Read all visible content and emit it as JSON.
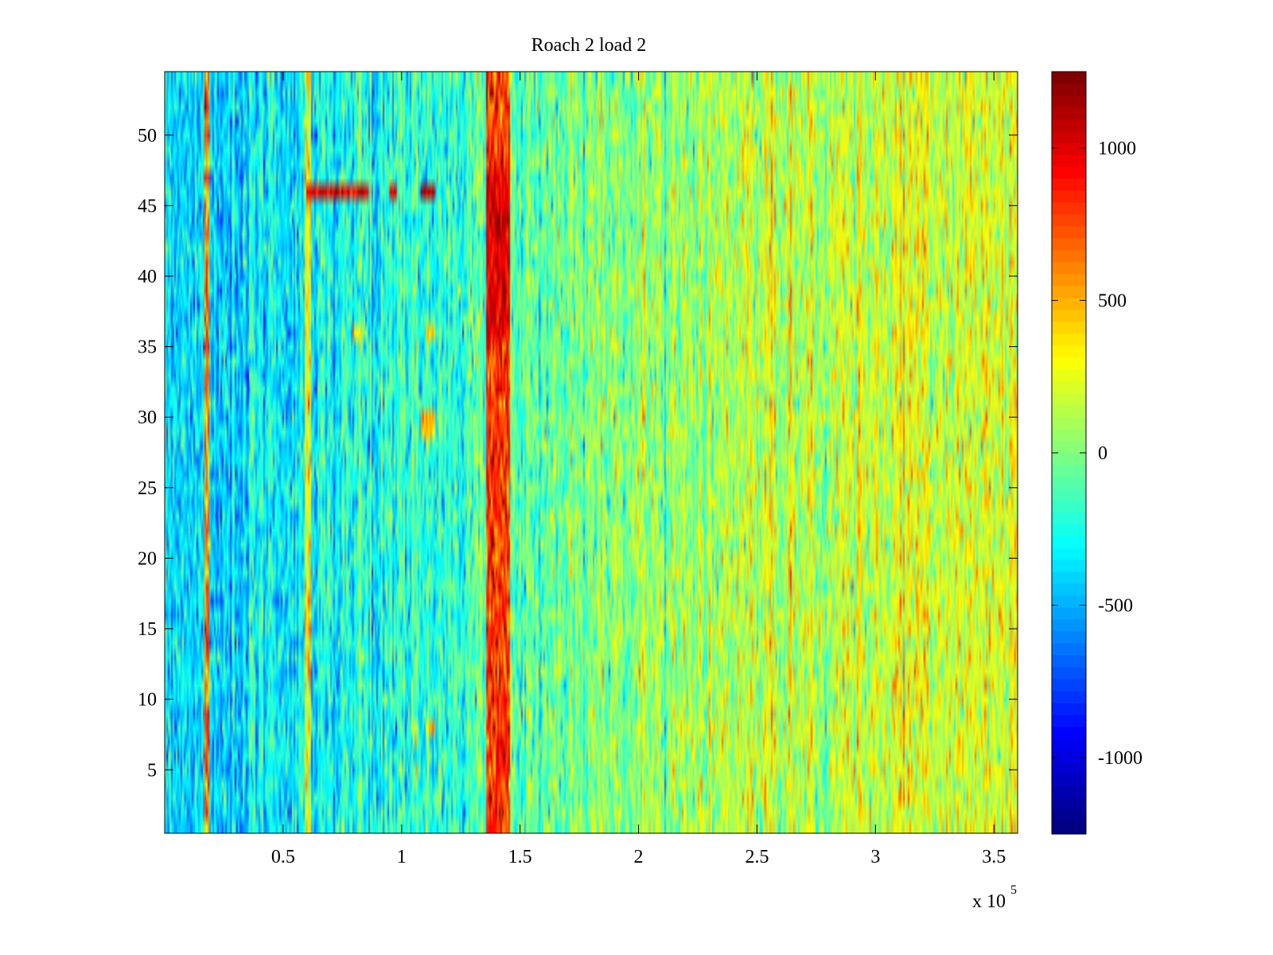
{
  "chart_data": {
    "type": "heatmap",
    "title": "Roach 2 load 2",
    "xlabel": "",
    "ylabel": "",
    "x_exponent_label": "x 10",
    "x_exponent_power": "5",
    "xlim": [
      0.5,
      360000
    ],
    "ylim": [
      0.5,
      54.5
    ],
    "x_ticks": [
      50000,
      100000,
      150000,
      200000,
      250000,
      300000,
      350000
    ],
    "x_tick_labels": [
      "0.5",
      "1",
      "1.5",
      "2",
      "2.5",
      "3",
      "3.5"
    ],
    "y_ticks": [
      5,
      10,
      15,
      20,
      25,
      30,
      35,
      40,
      45,
      50
    ],
    "y_tick_labels": [
      "5",
      "10",
      "15",
      "20",
      "25",
      "30",
      "35",
      "40",
      "45",
      "50"
    ],
    "rows": 54,
    "colormap": "jet",
    "clim": [
      -1250,
      1250
    ],
    "colorbar_ticks": [
      -1000,
      -500,
      0,
      500,
      1000
    ],
    "colorbar_tick_labels": [
      "-1000",
      "-500",
      "0",
      "500",
      "1000"
    ],
    "background_trend": [
      {
        "x": 0,
        "value": -350
      },
      {
        "x": 30000,
        "value": -400
      },
      {
        "x": 60000,
        "value": -300
      },
      {
        "x": 100000,
        "value": -250
      },
      {
        "x": 130000,
        "value": -150
      },
      {
        "x": 160000,
        "value": -50
      },
      {
        "x": 200000,
        "value": 50
      },
      {
        "x": 250000,
        "value": 120
      },
      {
        "x": 300000,
        "value": 200
      },
      {
        "x": 360000,
        "value": 250
      }
    ],
    "hot_bands": [
      {
        "x_start": 136000,
        "x_end": 146000,
        "value": 800
      },
      {
        "x_start": 17000,
        "x_end": 19000,
        "value": 650
      },
      {
        "x_start": 59000,
        "x_end": 62000,
        "value": 300
      },
      {
        "x_start": 263000,
        "x_end": 264500,
        "value": 400
      }
    ],
    "hot_spots": [
      {
        "x_start": 60000,
        "x_end": 86000,
        "y_start": 45.5,
        "y_end": 46.5,
        "value": 1000
      },
      {
        "x_start": 95000,
        "x_end": 98000,
        "y_start": 45.5,
        "y_end": 46.5,
        "value": 950
      },
      {
        "x_start": 108000,
        "x_end": 114000,
        "y_start": 45.5,
        "y_end": 46.5,
        "value": 1150
      },
      {
        "x_start": 136000,
        "x_end": 146000,
        "y_start": 36,
        "y_end": 47,
        "value": 1000
      },
      {
        "x_start": 79000,
        "x_end": 84000,
        "y_start": 35.5,
        "y_end": 36.5,
        "value": 400
      },
      {
        "x_start": 110000,
        "x_end": 114000,
        "y_start": 35.5,
        "y_end": 36.5,
        "value": 450
      },
      {
        "x_start": 108000,
        "x_end": 114000,
        "y_start": 28.5,
        "y_end": 30.5,
        "value": 450
      },
      {
        "x_start": 110000,
        "x_end": 114000,
        "y_start": 7.5,
        "y_end": 8.5,
        "value": 500
      }
    ]
  }
}
